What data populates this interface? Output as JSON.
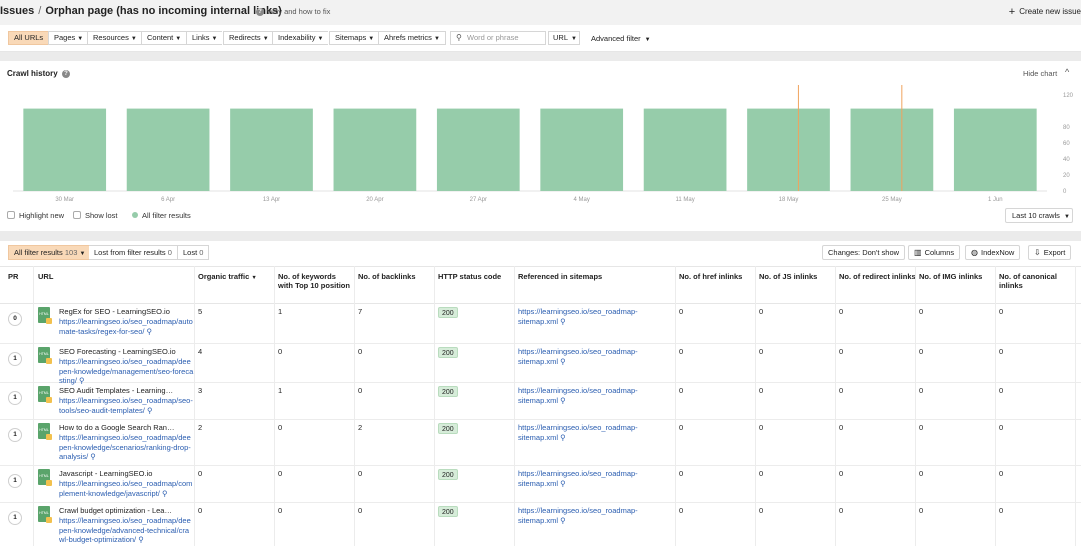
{
  "header": {
    "issues": "Issues",
    "separator": "/",
    "page_title": "Orphan page (has no incoming internal links)",
    "help_link": "Why and how to fix",
    "create_issue": "Create new issue"
  },
  "filters": {
    "items": [
      "All URLs",
      "Pages",
      "Resources",
      "Content",
      "Links",
      "Redirects",
      "Indexability",
      "Sitemaps",
      "Ahrefs metrics"
    ],
    "search_placeholder": "Word or phrase",
    "url_select": "URL",
    "advanced": "Advanced filter"
  },
  "crawl_history": {
    "title": "Crawl history",
    "hide_chart": "Hide chart",
    "highlight_new": "Highlight new",
    "show_lost": "Show lost",
    "all_filter_results": "All filter results",
    "last_crawls": "Last 10 crawls"
  },
  "chart_data": {
    "type": "bar",
    "categories": [
      "30 Mar",
      "6 Apr",
      "13 Apr",
      "20 Apr",
      "27 Apr",
      "4 May",
      "11 May",
      "18 May",
      "25 May",
      "1 Jun"
    ],
    "values": [
      103,
      103,
      103,
      103,
      103,
      103,
      103,
      103,
      103,
      103
    ],
    "ylim": [
      0,
      120
    ],
    "yticks": [
      "120",
      "80",
      "60",
      "40",
      "20",
      "0"
    ],
    "ytick_values": [
      120,
      80,
      60,
      40,
      20,
      0
    ],
    "color": "#96ccaa",
    "marker_color": "#f0a35e",
    "markers_at": [
      "18 May",
      "25 May"
    ]
  },
  "results": {
    "tab_all_label": "All filter results",
    "tab_all_count": "103",
    "tab_lost_label": "Lost from filter results",
    "tab_lost_count": "0",
    "tab_lost2_label": "Lost",
    "tab_lost2_count": "0",
    "changes": "Changes: Don't show",
    "columns": "Columns",
    "indexnow": "IndexNow",
    "export": "Export"
  },
  "table": {
    "headers": {
      "pr": "PR",
      "url": "URL",
      "organic_traffic": "Organic traffic",
      "keywords_top10": "No. of keywords with Top 10 position",
      "backlinks": "No. of backlinks",
      "http_status": "HTTP status code",
      "sitemaps": "Referenced in sitemaps",
      "href_inlinks": "No. of href inlinks",
      "js_inlinks": "No. of JS inlinks",
      "redirect_inlinks": "No. of redirect inlinks",
      "img_inlinks": "No. of IMG inlinks",
      "canonical_inlinks": "No. of canonical inlinks"
    },
    "rows": [
      {
        "pr": "0",
        "title": "RegEx for SEO - LearningSEO.io",
        "url": "https://learningseo.io/seo_roadmap/automate-tasks/regex-for-seo/",
        "traffic": "5",
        "keywords": "1",
        "backlinks": "7",
        "status": "200",
        "sitemap": "https://learningseo.io/seo_roadmap-sitemap.xml",
        "href": "0",
        "js": "0",
        "redirect": "0",
        "img": "0",
        "canonical": "0"
      },
      {
        "pr": "1",
        "title": "SEO Forecasting - LearningSEO.io",
        "url": "https://learningseo.io/seo_roadmap/deepen-knowledge/management/seo-forecasting/",
        "traffic": "4",
        "keywords": "0",
        "backlinks": "0",
        "status": "200",
        "sitemap": "https://learningseo.io/seo_roadmap-sitemap.xml",
        "href": "0",
        "js": "0",
        "redirect": "0",
        "img": "0",
        "canonical": "0"
      },
      {
        "pr": "1",
        "title": "SEO Audit Templates - Learning…",
        "url": "https://learningseo.io/seo_roadmap/seo-tools/seo-audit-templates/",
        "traffic": "3",
        "keywords": "1",
        "backlinks": "0",
        "status": "200",
        "sitemap": "https://learningseo.io/seo_roadmap-sitemap.xml",
        "href": "0",
        "js": "0",
        "redirect": "0",
        "img": "0",
        "canonical": "0"
      },
      {
        "pr": "1",
        "title": "How to do a Google Search Ran…",
        "url": "https://learningseo.io/seo_roadmap/deepen-knowledge/scenarios/ranking-drop-analysis/",
        "traffic": "2",
        "keywords": "0",
        "backlinks": "2",
        "status": "200",
        "sitemap": "https://learningseo.io/seo_roadmap-sitemap.xml",
        "href": "0",
        "js": "0",
        "redirect": "0",
        "img": "0",
        "canonical": "0"
      },
      {
        "pr": "1",
        "title": "Javascript - LearningSEO.io",
        "url": "https://learningseo.io/seo_roadmap/complement-knowledge/javascript/",
        "traffic": "0",
        "keywords": "0",
        "backlinks": "0",
        "status": "200",
        "sitemap": "https://learningseo.io/seo_roadmap-sitemap.xml",
        "href": "0",
        "js": "0",
        "redirect": "0",
        "img": "0",
        "canonical": "0"
      },
      {
        "pr": "1",
        "title": "Crawl budget optimization - Lea…",
        "url": "https://learningseo.io/seo_roadmap/deepen-knowledge/advanced-technical/crawl-budget-optimization/",
        "traffic": "0",
        "keywords": "0",
        "backlinks": "0",
        "status": "200",
        "sitemap": "https://learningseo.io/seo_roadmap-sitemap.xml",
        "href": "0",
        "js": "0",
        "redirect": "0",
        "img": "0",
        "canonical": "0"
      }
    ]
  }
}
